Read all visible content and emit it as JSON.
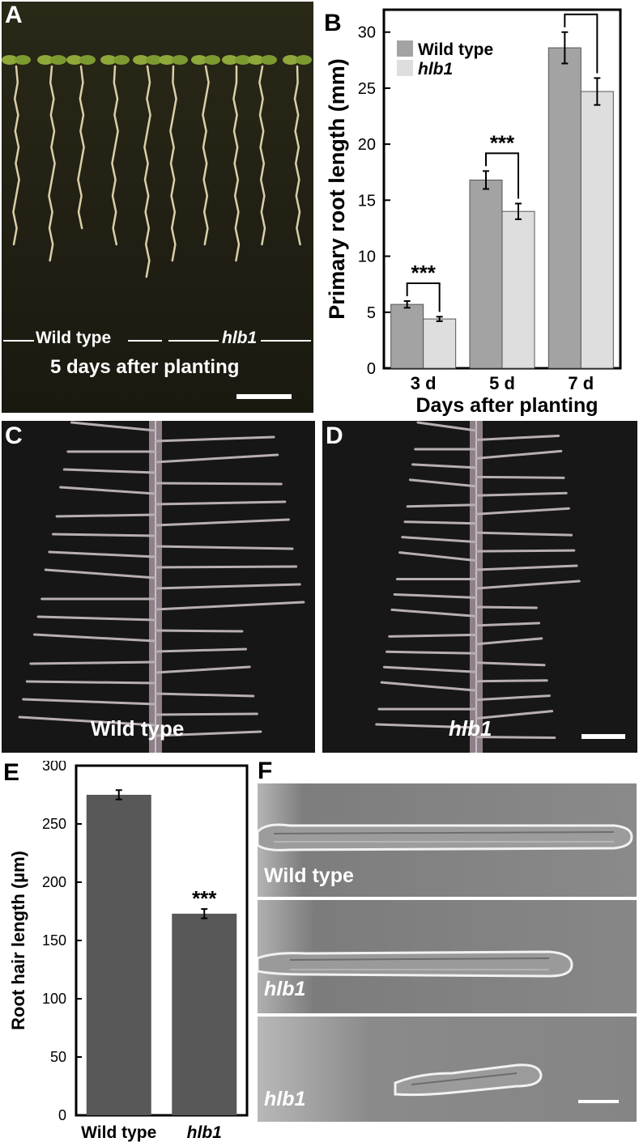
{
  "panels": {
    "a": {
      "letter": "A",
      "wt_label": "Wild type",
      "mut_label": "hlb1",
      "caption": "5 days after planting"
    },
    "b": {
      "letter": "B"
    },
    "c": {
      "letter": "C",
      "label": "Wild type"
    },
    "d": {
      "letter": "D",
      "label": "hlb1"
    },
    "e": {
      "letter": "E"
    },
    "f": {
      "letter": "F",
      "labels": [
        "Wild type",
        "hlb1",
        "hlb1"
      ]
    }
  },
  "colors": {
    "wild_type": "#a3a3a3",
    "hlb1": "#dedede",
    "root_hair_bars": "#585858"
  },
  "chart_data": [
    {
      "id": "B",
      "type": "bar",
      "categories": [
        "3 d",
        "5 d",
        "7 d"
      ],
      "series": [
        {
          "name": "Wild type",
          "values": [
            5.7,
            16.8,
            28.6
          ],
          "errors": [
            0.3,
            0.8,
            1.4
          ]
        },
        {
          "name": "hlb1",
          "values": [
            4.4,
            14.0,
            24.7
          ],
          "errors": [
            0.2,
            0.7,
            1.2
          ]
        }
      ],
      "significance": [
        "***",
        "***",
        "***"
      ],
      "xlabel": "Days after planting",
      "ylabel": "Primary root length (mm)",
      "ylim": [
        0,
        32
      ],
      "yticks": [
        0,
        5,
        10,
        15,
        20,
        25,
        30
      ],
      "legend_position": "top-left",
      "grid": false
    },
    {
      "id": "E",
      "type": "bar",
      "categories": [
        "Wild type",
        "hlb1"
      ],
      "values": [
        275,
        173
      ],
      "errors": [
        4,
        4
      ],
      "significance": [
        "",
        "***"
      ],
      "ylabel": "Root hair length (µm)",
      "ylim": [
        0,
        300
      ],
      "yticks": [
        0,
        50,
        100,
        150,
        200,
        250,
        300
      ],
      "grid": false
    }
  ]
}
